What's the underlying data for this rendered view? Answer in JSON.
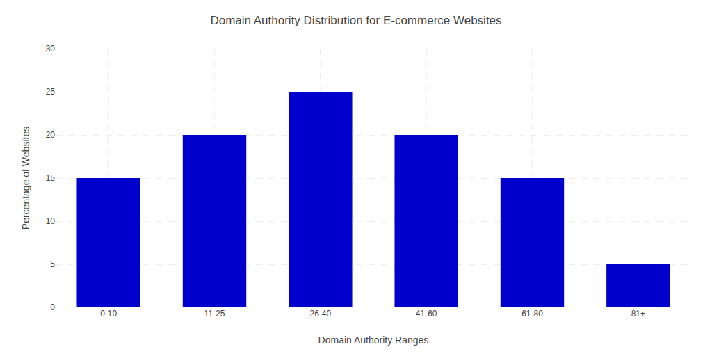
{
  "chart_data": {
    "type": "bar",
    "title": "Domain Authority Distribution for E-commerce Websites",
    "xlabel": "Domain Authority Ranges",
    "ylabel": "Percentage of Websites",
    "categories": [
      "0-10",
      "11-25",
      "26-40",
      "41-60",
      "61-80",
      "81+"
    ],
    "values": [
      15,
      20,
      25,
      20,
      15,
      5
    ],
    "color": "#0000CC",
    "ylim": [
      0,
      30
    ],
    "yticks": [
      0,
      5,
      10,
      15,
      20,
      25,
      30
    ],
    "grid": true
  }
}
